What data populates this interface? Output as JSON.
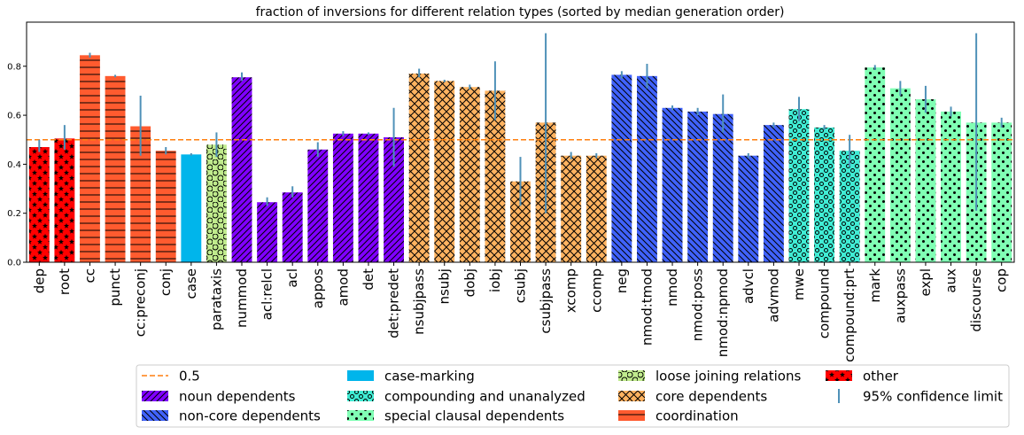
{
  "chart_data": {
    "type": "bar",
    "title": "fraction of inversions for different relation types (sorted by median generation order)",
    "xlabel": "",
    "ylabel": "",
    "ylim": [
      0,
      0.98
    ],
    "yticks": [
      "0.0",
      "0.2",
      "0.4",
      "0.6",
      "0.8"
    ],
    "ytick_values": [
      0,
      0.2,
      0.4,
      0.6,
      0.8
    ],
    "reference_line": {
      "label": "0.5",
      "value": 0.5,
      "color": "#ff7f0e"
    },
    "groups": [
      {
        "key": "noun",
        "name": "noun dependents",
        "color": "#8000ff",
        "pattern": "diag"
      },
      {
        "key": "noncore",
        "name": "non-core dependents",
        "color": "#4062fa",
        "pattern": "backdiag"
      },
      {
        "key": "case",
        "name": "case-marking",
        "color": "#00b5eb",
        "pattern": "none"
      },
      {
        "key": "compounding",
        "name": "compounding and unanalyzed",
        "color": "#40ecd4",
        "pattern": "ring"
      },
      {
        "key": "special",
        "name": "special clausal dependents",
        "color": "#80ffb4",
        "pattern": "dot"
      },
      {
        "key": "loose",
        "name": "loose joining relations",
        "color": "#c0eb8d",
        "pattern": "bigring"
      },
      {
        "key": "core",
        "name": "core dependents",
        "color": "#ffb360",
        "pattern": "cross"
      },
      {
        "key": "coord",
        "name": "coordination",
        "color": "#ff5b2f",
        "pattern": "hline"
      },
      {
        "key": "other",
        "name": "other",
        "color": "#ff0000",
        "pattern": "star"
      }
    ],
    "legend_order": [
      {
        "type": "line",
        "label": "0.5"
      },
      {
        "type": "group",
        "key": "noun"
      },
      {
        "type": "group",
        "key": "noncore"
      },
      {
        "type": "group",
        "key": "case"
      },
      {
        "type": "group",
        "key": "compounding"
      },
      {
        "type": "group",
        "key": "special"
      },
      {
        "type": "group",
        "key": "loose"
      },
      {
        "type": "group",
        "key": "core"
      },
      {
        "type": "group",
        "key": "coord"
      },
      {
        "type": "group",
        "key": "other"
      },
      {
        "type": "errorbar",
        "label": "95% confidence limit"
      }
    ],
    "errorbar_color": "#4f91b8",
    "bars": [
      {
        "label": "dep",
        "value": 0.47,
        "lo": 0.45,
        "hi": 0.5,
        "group": "other"
      },
      {
        "label": "root",
        "value": 0.505,
        "lo": 0.46,
        "hi": 0.56,
        "group": "other"
      },
      {
        "label": "cc",
        "value": 0.845,
        "lo": 0.835,
        "hi": 0.855,
        "group": "coord"
      },
      {
        "label": "punct",
        "value": 0.76,
        "lo": 0.755,
        "hi": 0.765,
        "group": "coord"
      },
      {
        "label": "cc:preconj",
        "value": 0.555,
        "lo": 0.435,
        "hi": 0.68,
        "group": "coord"
      },
      {
        "label": "conj",
        "value": 0.455,
        "lo": 0.44,
        "hi": 0.47,
        "group": "coord"
      },
      {
        "label": "case",
        "value": 0.44,
        "lo": 0.435,
        "hi": 0.445,
        "group": "case"
      },
      {
        "label": "parataxis",
        "value": 0.48,
        "lo": 0.43,
        "hi": 0.53,
        "group": "loose"
      },
      {
        "label": "nummod",
        "value": 0.755,
        "lo": 0.74,
        "hi": 0.775,
        "group": "noun"
      },
      {
        "label": "acl:relcl",
        "value": 0.245,
        "lo": 0.23,
        "hi": 0.265,
        "group": "noun"
      },
      {
        "label": "acl",
        "value": 0.285,
        "lo": 0.265,
        "hi": 0.31,
        "group": "noun"
      },
      {
        "label": "appos",
        "value": 0.46,
        "lo": 0.43,
        "hi": 0.49,
        "group": "noun"
      },
      {
        "label": "amod",
        "value": 0.525,
        "lo": 0.515,
        "hi": 0.535,
        "group": "noun"
      },
      {
        "label": "det",
        "value": 0.525,
        "lo": 0.52,
        "hi": 0.53,
        "group": "noun"
      },
      {
        "label": "det:predet",
        "value": 0.51,
        "lo": 0.39,
        "hi": 0.63,
        "group": "noun"
      },
      {
        "label": "nsubjpass",
        "value": 0.77,
        "lo": 0.755,
        "hi": 0.79,
        "group": "core"
      },
      {
        "label": "nsubj",
        "value": 0.74,
        "lo": 0.735,
        "hi": 0.745,
        "group": "core"
      },
      {
        "label": "dobj",
        "value": 0.715,
        "lo": 0.705,
        "hi": 0.725,
        "group": "core"
      },
      {
        "label": "iobj",
        "value": 0.7,
        "lo": 0.58,
        "hi": 0.82,
        "group": "core"
      },
      {
        "label": "csubj",
        "value": 0.33,
        "lo": 0.23,
        "hi": 0.43,
        "group": "core"
      },
      {
        "label": "csubjpass",
        "value": 0.57,
        "lo": 0.2,
        "hi": 0.935,
        "group": "core"
      },
      {
        "label": "xcomp",
        "value": 0.435,
        "lo": 0.42,
        "hi": 0.45,
        "group": "core"
      },
      {
        "label": "ccomp",
        "value": 0.435,
        "lo": 0.425,
        "hi": 0.445,
        "group": "core"
      },
      {
        "label": "neg",
        "value": 0.765,
        "lo": 0.75,
        "hi": 0.78,
        "group": "noncore"
      },
      {
        "label": "nmod:tmod",
        "value": 0.76,
        "lo": 0.71,
        "hi": 0.81,
        "group": "noncore"
      },
      {
        "label": "nmod",
        "value": 0.63,
        "lo": 0.62,
        "hi": 0.64,
        "group": "noncore"
      },
      {
        "label": "nmod:poss",
        "value": 0.615,
        "lo": 0.6,
        "hi": 0.63,
        "group": "noncore"
      },
      {
        "label": "nmod:npmod",
        "value": 0.605,
        "lo": 0.53,
        "hi": 0.685,
        "group": "noncore"
      },
      {
        "label": "advcl",
        "value": 0.435,
        "lo": 0.425,
        "hi": 0.445,
        "group": "noncore"
      },
      {
        "label": "advmod",
        "value": 0.56,
        "lo": 0.55,
        "hi": 0.57,
        "group": "noncore"
      },
      {
        "label": "mwe",
        "value": 0.625,
        "lo": 0.575,
        "hi": 0.675,
        "group": "compounding"
      },
      {
        "label": "compound",
        "value": 0.55,
        "lo": 0.54,
        "hi": 0.56,
        "group": "compounding"
      },
      {
        "label": "compound:prt",
        "value": 0.455,
        "lo": 0.39,
        "hi": 0.52,
        "group": "compounding"
      },
      {
        "label": "mark",
        "value": 0.795,
        "lo": 0.785,
        "hi": 0.805,
        "group": "special"
      },
      {
        "label": "auxpass",
        "value": 0.71,
        "lo": 0.68,
        "hi": 0.74,
        "group": "special"
      },
      {
        "label": "expl",
        "value": 0.665,
        "lo": 0.61,
        "hi": 0.72,
        "group": "special"
      },
      {
        "label": "aux",
        "value": 0.615,
        "lo": 0.595,
        "hi": 0.635,
        "group": "special"
      },
      {
        "label": "discourse",
        "value": 0.57,
        "lo": 0.21,
        "hi": 0.935,
        "group": "special"
      },
      {
        "label": "cop",
        "value": 0.57,
        "lo": 0.55,
        "hi": 0.59,
        "group": "special"
      }
    ]
  }
}
